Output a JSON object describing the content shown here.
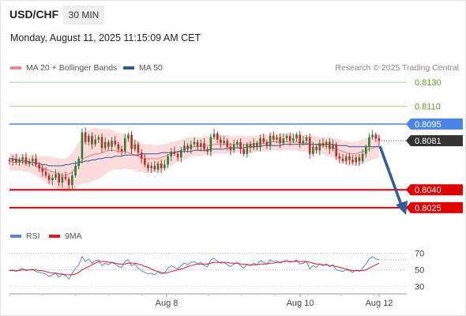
{
  "header": {
    "symbol": "USD/CHF",
    "timeframe": "30 MIN",
    "datetime": "Monday, August 11, 2025 11:15:09 AM CET"
  },
  "legend_main": [
    {
      "label": "MA 20 + Bollinger Bands",
      "color": "#f08a86"
    },
    {
      "label": "MA 50",
      "color": "#2c5a96"
    }
  ],
  "credit": "Research © 2025 Trading Central",
  "legend_rsi": [
    {
      "label": "RSI",
      "color": "#5b86d6"
    },
    {
      "label": "9MA",
      "color": "#e41a1a"
    }
  ],
  "colors": {
    "up_candle": "#2e7d32",
    "down_candle": "#c62828",
    "resistance_green": "#a9d38a",
    "resistance_blue": "#4a86e8",
    "support_red": "#e00000",
    "price_tag": "#333333",
    "band_fill": "#fbd7d7",
    "arrow": "#2f5c9a"
  },
  "chart_data": {
    "type": "candlestick",
    "instrument": "USD/CHF",
    "timeframe": "30 MIN",
    "ylim": [
      8015,
      8136
    ],
    "levels": [
      {
        "value": 0.813,
        "label": "0.8130",
        "style": "green-line"
      },
      {
        "value": 0.811,
        "label": "0.8110",
        "style": "green-line"
      },
      {
        "value": 0.8095,
        "label": "0.8095",
        "style": "blue-tag"
      },
      {
        "value": 0.8081,
        "label": "0.8081",
        "style": "current-price"
      },
      {
        "value": 0.804,
        "label": "0.8040",
        "style": "red-tag"
      },
      {
        "value": 0.8025,
        "label": "0.8025",
        "style": "red-tag"
      }
    ],
    "x_ticks": [
      "Aug 8",
      "Aug 10",
      "Aug 12"
    ],
    "closes": [
      8064,
      8066,
      8063,
      8065,
      8067,
      8062,
      8064,
      8066,
      8061,
      8058,
      8055,
      8052,
      8048,
      8050,
      8053,
      8046,
      8051,
      8049,
      8044,
      8052,
      8060,
      8066,
      8088,
      8080,
      8085,
      8078,
      8082,
      8084,
      8075,
      8080,
      8076,
      8081,
      8078,
      8074,
      8072,
      8083,
      8086,
      8074,
      8078,
      8071,
      8066,
      8061,
      8058,
      8060,
      8057,
      8062,
      8058,
      8061,
      8068,
      8072,
      8070,
      8067,
      8073,
      8077,
      8074,
      8078,
      8080,
      8076,
      8079,
      8074,
      8072,
      8084,
      8087,
      8082,
      8079,
      8081,
      8076,
      8073,
      8078,
      8080,
      8074,
      8070,
      8078,
      8075,
      8079,
      8076,
      8083,
      8080,
      8077,
      8085,
      8082,
      8084,
      8079,
      8083,
      8085,
      8081,
      8083,
      8086,
      8079,
      8081,
      8084,
      8070,
      8076,
      8073,
      8079,
      8077,
      8080,
      8074,
      8078,
      8068,
      8066,
      8064,
      8068,
      8065,
      8063,
      8067,
      8064,
      8070,
      8076,
      8084,
      8086,
      8083,
      8081
    ],
    "ma20": [
      8064,
      8063,
      8063,
      8063,
      8063,
      8062,
      8062,
      8061,
      8060,
      8059,
      8058,
      8057,
      8056,
      8055,
      8054,
      8053,
      8052,
      8052,
      8053,
      8055,
      8058,
      8062,
      8065,
      8067,
      8068,
      8069,
      8070,
      8070,
      8071,
      8072,
      8073,
      8073,
      8073,
      8072,
      8072,
      8072,
      8071,
      8070,
      8069,
      8068,
      8067,
      8066,
      8066,
      8066,
      8066,
      8066,
      8067,
      8068,
      8069,
      8070,
      8071,
      8072,
      8073,
      8074,
      8075,
      8076,
      8076,
      8076,
      8076,
      8077,
      8077,
      8077,
      8078,
      8078,
      8078,
      8078,
      8078,
      8078,
      8078,
      8078,
      8078,
      8078,
      8078,
      8078,
      8078,
      8079,
      8079,
      8079,
      8079,
      8080,
      8080,
      8080,
      8080,
      8080,
      8080,
      8080,
      8080,
      8080,
      8079,
      8079,
      8079,
      8078,
      8078,
      8078,
      8077,
      8077,
      8076,
      8076,
      8075,
      8074,
      8073,
      8072,
      8071,
      8070,
      8070,
      8070,
      8071,
      8072,
      8073,
      8074,
      8075,
      8076,
      8077
    ],
    "ma50": [
      8066,
      8066,
      8065,
      8065,
      8064,
      8064,
      8063,
      8063,
      8062,
      8062,
      8061,
      8061,
      8060,
      8060,
      8060,
      8060,
      8060,
      8061,
      8061,
      8062,
      8062,
      8063,
      8063,
      8064,
      8064,
      8065,
      8065,
      8066,
      8066,
      8067,
      8067,
      8067,
      8068,
      8068,
      8068,
      8069,
      8069,
      8069,
      8069,
      8069,
      8070,
      8070,
      8070,
      8070,
      8070,
      8070,
      8071,
      8071,
      8071,
      8071,
      8071,
      8072,
      8072,
      8072,
      8072,
      8072,
      8073,
      8073,
      8073,
      8073,
      8073,
      8074,
      8074,
      8074,
      8074,
      8074,
      8075,
      8075,
      8075,
      8075,
      8075,
      8075,
      8076,
      8076,
      8076,
      8076,
      8076,
      8077,
      8077,
      8077,
      8077,
      8077,
      8077,
      8078,
      8078,
      8078,
      8078,
      8078,
      8078,
      8078,
      8078,
      8078,
      8078,
      8078,
      8078,
      8078,
      8078,
      8078,
      8078,
      8077,
      8077,
      8077,
      8077,
      8076,
      8076,
      8076,
      8076,
      8076,
      8076,
      8076,
      8076,
      8076,
      8076
    ],
    "bb_width": [
      7,
      7,
      7,
      7,
      7,
      7,
      7,
      8,
      8,
      9,
      10,
      11,
      12,
      12,
      13,
      13,
      14,
      14,
      15,
      16,
      17,
      18,
      20,
      21,
      22,
      22,
      22,
      21,
      20,
      19,
      18,
      17,
      16,
      15,
      15,
      14,
      14,
      13,
      13,
      13,
      12,
      12,
      12,
      12,
      11,
      11,
      11,
      10,
      10,
      10,
      9,
      9,
      9,
      9,
      9,
      8,
      8,
      8,
      8,
      8,
      8,
      8,
      8,
      8,
      8,
      8,
      8,
      7,
      7,
      7,
      7,
      7,
      7,
      7,
      7,
      7,
      7,
      7,
      7,
      7,
      7,
      7,
      7,
      7,
      7,
      7,
      7,
      7,
      7,
      7,
      7,
      7,
      7,
      7,
      7,
      7,
      8,
      8,
      8,
      9,
      9,
      9,
      10,
      10,
      10,
      10,
      10,
      10,
      10,
      10,
      10,
      10,
      10
    ],
    "rsi": {
      "ylim": [
        25,
        78
      ],
      "ticks": [
        "70",
        "50",
        "30"
      ],
      "values": [
        49,
        50,
        48,
        50,
        52,
        49,
        50,
        51,
        48,
        47,
        46,
        45,
        42,
        44,
        46,
        41,
        45,
        43,
        39,
        46,
        52,
        56,
        66,
        60,
        63,
        58,
        61,
        62,
        55,
        58,
        56,
        59,
        57,
        54,
        53,
        60,
        62,
        55,
        57,
        52,
        49,
        47,
        45,
        46,
        44,
        48,
        45,
        47,
        52,
        55,
        53,
        51,
        55,
        58,
        56,
        59,
        60,
        57,
        59,
        55,
        54,
        62,
        64,
        60,
        58,
        59,
        56,
        54,
        57,
        59,
        55,
        52,
        57,
        55,
        58,
        56,
        61,
        59,
        57,
        62,
        60,
        61,
        58,
        60,
        62,
        59,
        60,
        62,
        57,
        58,
        60,
        51,
        55,
        53,
        57,
        55,
        57,
        54,
        56,
        50,
        49,
        48,
        50,
        49,
        47,
        50,
        48,
        52,
        57,
        63,
        66,
        63,
        62
      ],
      "ma": [
        49,
        49,
        49,
        49,
        50,
        50,
        50,
        50,
        50,
        49,
        49,
        48,
        47,
        46,
        46,
        45,
        45,
        44,
        44,
        44,
        45,
        47,
        50,
        52,
        54,
        56,
        58,
        60,
        60,
        60,
        59,
        59,
        58,
        57,
        57,
        57,
        58,
        58,
        58,
        57,
        56,
        54,
        53,
        51,
        49,
        48,
        47,
        46,
        47,
        48,
        49,
        50,
        51,
        52,
        54,
        55,
        56,
        57,
        57,
        57,
        57,
        58,
        59,
        59,
        59,
        59,
        59,
        58,
        58,
        58,
        57,
        57,
        56,
        56,
        56,
        56,
        57,
        57,
        57,
        58,
        58,
        59,
        59,
        60,
        60,
        60,
        60,
        60,
        60,
        60,
        60,
        59,
        58,
        57,
        57,
        56,
        56,
        55,
        55,
        54,
        53,
        52,
        51,
        50,
        49,
        49,
        49,
        49,
        50,
        52,
        54,
        56,
        58
      ]
    }
  }
}
